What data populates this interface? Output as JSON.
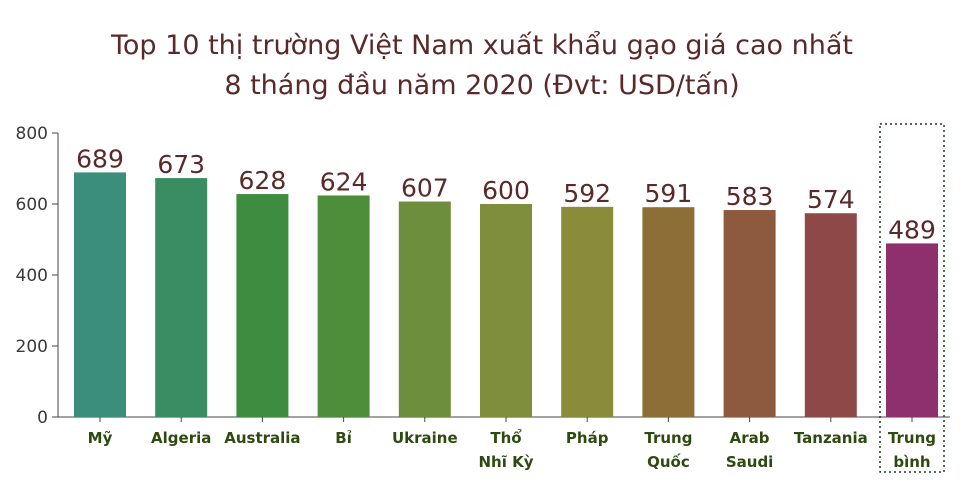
{
  "header": {
    "title_line1": "Top 10 thị trường Việt Nam xuất khẩu gạo giá cao nhất",
    "title_line2": "8 tháng đầu năm 2020 (Đvt: USD/tấn)"
  },
  "chart_data": {
    "type": "bar",
    "title": "Top 10 thị trường Việt Nam xuất khẩu gạo giá cao nhất 8 tháng đầu năm 2020 (Đvt: USD/tấn)",
    "categories": [
      [
        "Mỹ"
      ],
      [
        "Algeria"
      ],
      [
        "Australia"
      ],
      [
        "Bỉ"
      ],
      [
        "Ukraine"
      ],
      [
        "Thổ",
        "Nhĩ Kỳ"
      ],
      [
        "Pháp"
      ],
      [
        "Trung",
        "Quốc"
      ],
      [
        "Arab",
        "Saudi"
      ],
      [
        "Tanzania"
      ],
      [
        "Trung",
        "bình"
      ]
    ],
    "values": [
      689,
      673,
      628,
      624,
      607,
      600,
      592,
      591,
      583,
      574,
      489
    ],
    "colors": [
      "#3a8e7a",
      "#3a8d63",
      "#3e8c3f",
      "#4e8e3b",
      "#6c8e3d",
      "#7e8e3c",
      "#8b8c3a",
      "#8d6e36",
      "#8e5a3e",
      "#8e4848",
      "#8e2f6e"
    ],
    "highlight_index": 10,
    "yticks": [
      0,
      200,
      400,
      600,
      800
    ],
    "ylim": [
      0,
      800
    ],
    "grid": false,
    "legend": "none"
  }
}
